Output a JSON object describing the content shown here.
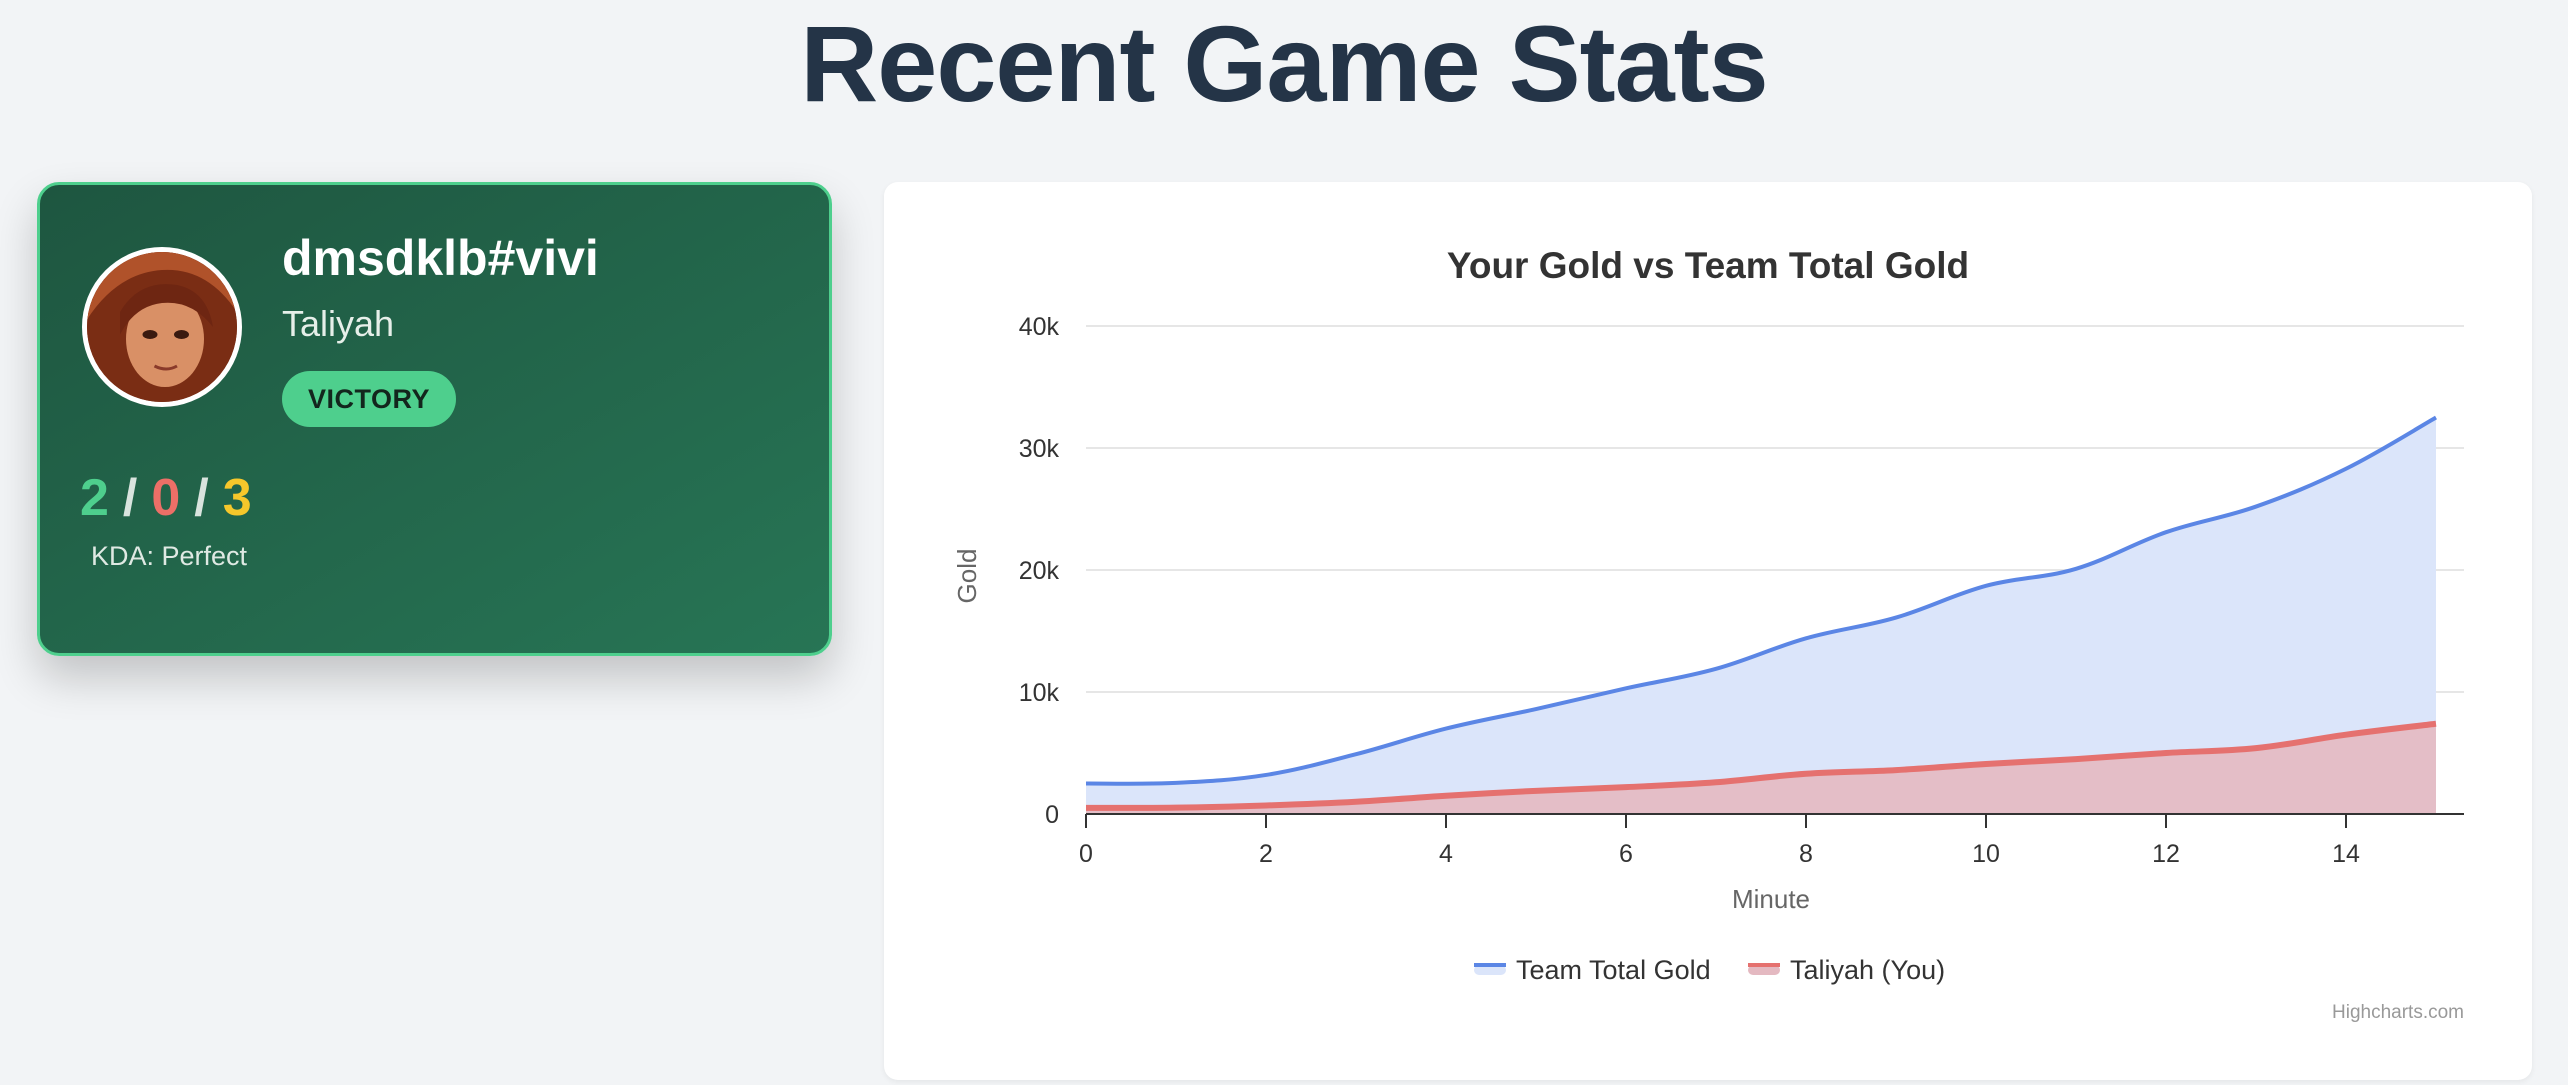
{
  "page": {
    "title": "Recent Game Stats"
  },
  "player": {
    "summoner_name": "dmsdklb#vivi",
    "champion": "Taliyah",
    "result": "VICTORY",
    "kills": "2",
    "deaths": "0",
    "assists": "3",
    "separator": "/",
    "kda_label": "KDA: Perfect",
    "colors": {
      "kills": "#4ecf8d",
      "deaths": "#ec6f67",
      "assists": "#f6c72b",
      "card": "#1f5a43",
      "badge": "#4ecf8d"
    }
  },
  "chart_data": {
    "type": "area",
    "title": "Your Gold vs Team Total Gold",
    "xlabel": "Minute",
    "ylabel": "Gold",
    "xlim": [
      0,
      15
    ],
    "ylim": [
      0,
      40000
    ],
    "x_ticks": [
      0,
      2,
      4,
      6,
      8,
      10,
      12,
      14
    ],
    "y_ticks": [
      0,
      10000,
      20000,
      30000,
      40000
    ],
    "y_tick_labels": [
      "0",
      "10k",
      "20k",
      "30k",
      "40k"
    ],
    "grid": true,
    "legend_position": "bottom-center",
    "credits": "Highcharts.com",
    "x": [
      0,
      1,
      2,
      3,
      4,
      5,
      6,
      7,
      8,
      9,
      10,
      11,
      12,
      13,
      14,
      15
    ],
    "series": [
      {
        "name": "Team Total Gold",
        "color": "#5b86e5",
        "fill": "#dbe5fa",
        "values": [
          2500,
          2550,
          3200,
          4900,
          7000,
          8600,
          10300,
          11900,
          14400,
          16100,
          18700,
          20100,
          23100,
          25200,
          28300,
          32500
        ]
      },
      {
        "name": "Taliyah (You)",
        "color": "#e5716f",
        "fill": "#e4b9c1",
        "values": [
          500,
          520,
          700,
          1000,
          1500,
          1900,
          2200,
          2600,
          3300,
          3600,
          4100,
          4500,
          5000,
          5400,
          6500,
          7400
        ]
      }
    ]
  }
}
